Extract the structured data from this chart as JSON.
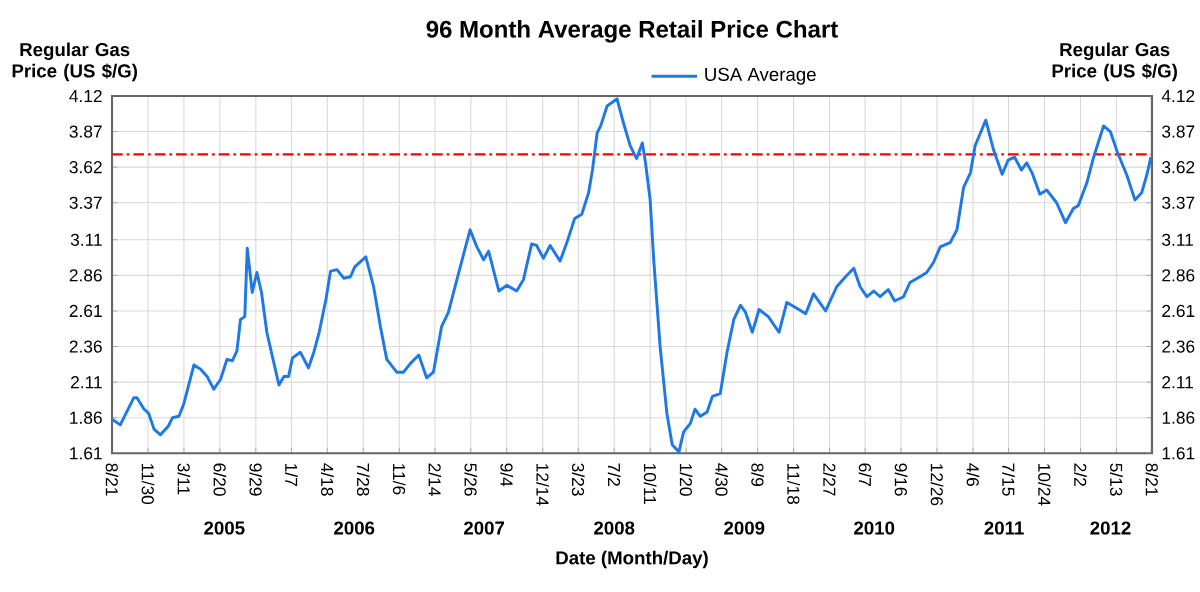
{
  "chart_data": {
    "type": "line",
    "title": "96 Month Average Retail Price Chart",
    "xlabel": "Date (Month/Day)",
    "ylabel": "Regular Gas Price (US $/G)",
    "y2label": "Regular Gas Price (US $/G)",
    "x": [
      "2004-08-21",
      "2004-09-13",
      "2004-10-21",
      "2004-10-30",
      "2004-11-19",
      "2004-12-02",
      "2004-12-17",
      "2005-01-04",
      "2005-01-26",
      "2005-02-07",
      "2005-02-25",
      "2005-03-11",
      "2005-04-08",
      "2005-04-27",
      "2005-05-15",
      "2005-06-03",
      "2005-06-22",
      "2005-07-10",
      "2005-07-25",
      "2005-08-07",
      "2005-08-17",
      "2005-08-29",
      "2005-09-05",
      "2005-09-19",
      "2005-10-02",
      "2005-10-15",
      "2005-10-30",
      "2005-12-03",
      "2005-12-17",
      "2005-12-30",
      "2006-01-10",
      "2006-02-01",
      "2006-02-24",
      "2006-03-11",
      "2006-03-26",
      "2006-04-14",
      "2006-04-27",
      "2006-05-15",
      "2006-06-03",
      "2006-06-22",
      "2006-07-04",
      "2006-08-04",
      "2006-08-26",
      "2006-09-14",
      "2006-10-02",
      "2006-10-30",
      "2006-11-18",
      "2006-12-07",
      "2006-12-31",
      "2007-01-22",
      "2007-02-10",
      "2007-03-05",
      "2007-03-24",
      "2007-04-17",
      "2007-05-24",
      "2007-06-12",
      "2007-07-01",
      "2007-07-15",
      "2007-08-13",
      "2007-09-04",
      "2007-10-02",
      "2007-10-21",
      "2007-11-13",
      "2007-11-27",
      "2007-12-16",
      "2008-01-04",
      "2008-02-01",
      "2008-02-20",
      "2008-03-13",
      "2008-04-02",
      "2008-04-21",
      "2008-05-02",
      "2008-05-15",
      "2008-05-25",
      "2008-06-12",
      "2008-07-10",
      "2008-07-28",
      "2008-08-16",
      "2008-09-03",
      "2008-09-19",
      "2008-09-28",
      "2008-10-11",
      "2008-10-21",
      "2008-11-08",
      "2008-11-27",
      "2008-12-12",
      "2008-12-31",
      "2009-01-13",
      "2009-02-01",
      "2009-02-14",
      "2009-03-01",
      "2009-03-20",
      "2009-04-04",
      "2009-04-26",
      "2009-05-15",
      "2009-06-03",
      "2009-06-22",
      "2009-07-06",
      "2009-07-25",
      "2009-08-13",
      "2009-09-08",
      "2009-10-08",
      "2009-10-30",
      "2009-12-03",
      "2009-12-22",
      "2010-01-13",
      "2010-02-16",
      "2010-03-19",
      "2010-04-13",
      "2010-05-06",
      "2010-05-24",
      "2010-06-12",
      "2010-07-01",
      "2010-07-19",
      "2010-08-11",
      "2010-08-29",
      "2010-09-23",
      "2010-10-11",
      "2010-11-08",
      "2010-11-27",
      "2010-12-16",
      "2011-01-04",
      "2011-02-01",
      "2011-02-20",
      "2011-03-11",
      "2011-03-30",
      "2011-04-12",
      "2011-04-27",
      "2011-05-12",
      "2011-06-03",
      "2011-06-27",
      "2011-07-14",
      "2011-08-01",
      "2011-08-20",
      "2011-09-04",
      "2011-09-19",
      "2011-10-11",
      "2011-10-30",
      "2011-11-27",
      "2011-12-22",
      "2012-01-13",
      "2012-01-27",
      "2012-02-20",
      "2012-03-10",
      "2012-04-07",
      "2012-04-26",
      "2012-05-15",
      "2012-06-12",
      "2012-07-04",
      "2012-07-23",
      "2012-08-07",
      "2012-08-18"
    ],
    "series": [
      {
        "name": "USA Average",
        "color": "#1e78e6",
        "values": [
          1.85,
          1.81,
          2.0,
          2.0,
          1.92,
          1.89,
          1.78,
          1.74,
          1.8,
          1.86,
          1.87,
          1.96,
          2.23,
          2.2,
          2.15,
          2.06,
          2.13,
          2.27,
          2.26,
          2.33,
          2.55,
          2.57,
          3.05,
          2.74,
          2.88,
          2.74,
          2.46,
          2.09,
          2.15,
          2.15,
          2.28,
          2.32,
          2.21,
          2.32,
          2.46,
          2.69,
          2.89,
          2.9,
          2.84,
          2.85,
          2.92,
          2.99,
          2.78,
          2.5,
          2.27,
          2.18,
          2.18,
          2.24,
          2.3,
          2.14,
          2.18,
          2.5,
          2.6,
          2.83,
          3.18,
          3.06,
          2.97,
          3.03,
          2.75,
          2.79,
          2.75,
          2.83,
          3.08,
          3.07,
          2.98,
          3.07,
          2.96,
          3.09,
          3.26,
          3.29,
          3.44,
          3.6,
          3.86,
          3.91,
          4.05,
          4.1,
          3.93,
          3.77,
          3.68,
          3.79,
          3.65,
          3.39,
          2.97,
          2.36,
          1.89,
          1.67,
          1.62,
          1.76,
          1.82,
          1.92,
          1.87,
          1.9,
          2.01,
          2.03,
          2.32,
          2.55,
          2.65,
          2.6,
          2.46,
          2.62,
          2.57,
          2.46,
          2.67,
          2.62,
          2.59,
          2.73,
          2.61,
          2.78,
          2.85,
          2.91,
          2.78,
          2.71,
          2.75,
          2.71,
          2.76,
          2.68,
          2.71,
          2.81,
          2.85,
          2.88,
          2.95,
          3.06,
          3.09,
          3.18,
          3.48,
          3.58,
          3.77,
          3.86,
          3.95,
          3.74,
          3.57,
          3.67,
          3.69,
          3.6,
          3.65,
          3.58,
          3.43,
          3.46,
          3.37,
          3.23,
          3.33,
          3.35,
          3.51,
          3.69,
          3.91,
          3.87,
          3.73,
          3.56,
          3.39,
          3.44,
          3.57,
          3.69
        ]
      }
    ],
    "xlim": [
      "2004-08-21",
      "2012-08-21"
    ],
    "xticks": [
      {
        "value": "2004-08-21",
        "label": "8/21"
      },
      {
        "value": "2004-11-30",
        "label": "11/30"
      },
      {
        "value": "2005-03-11",
        "label": "3/11"
      },
      {
        "value": "2005-06-20",
        "label": "6/20"
      },
      {
        "value": "2005-09-29",
        "label": "9/29"
      },
      {
        "value": "2006-01-07",
        "label": "1/7"
      },
      {
        "value": "2006-04-18",
        "label": "4/18"
      },
      {
        "value": "2006-07-28",
        "label": "7/28"
      },
      {
        "value": "2006-11-06",
        "label": "11/6"
      },
      {
        "value": "2007-02-14",
        "label": "2/14"
      },
      {
        "value": "2007-05-26",
        "label": "5/26"
      },
      {
        "value": "2007-09-04",
        "label": "9/4"
      },
      {
        "value": "2007-12-14",
        "label": "12/14"
      },
      {
        "value": "2008-03-23",
        "label": "3/23"
      },
      {
        "value": "2008-07-02",
        "label": "7/2"
      },
      {
        "value": "2008-10-11",
        "label": "10/11"
      },
      {
        "value": "2009-01-20",
        "label": "1/20"
      },
      {
        "value": "2009-04-30",
        "label": "4/30"
      },
      {
        "value": "2009-08-09",
        "label": "8/9"
      },
      {
        "value": "2009-11-18",
        "label": "11/18"
      },
      {
        "value": "2010-02-27",
        "label": "2/27"
      },
      {
        "value": "2010-06-07",
        "label": "6/7"
      },
      {
        "value": "2010-09-16",
        "label": "9/16"
      },
      {
        "value": "2010-12-26",
        "label": "12/26"
      },
      {
        "value": "2011-04-06",
        "label": "4/6"
      },
      {
        "value": "2011-07-15",
        "label": "7/15"
      },
      {
        "value": "2011-10-24",
        "label": "10/24"
      },
      {
        "value": "2012-02-02",
        "label": "2/2"
      },
      {
        "value": "2012-05-13",
        "label": "5/13"
      },
      {
        "value": "2012-08-21",
        "label": "8/21"
      }
    ],
    "ylim": [
      1.61,
      4.12
    ],
    "yticks": [
      1.61,
      1.86,
      2.11,
      2.36,
      2.61,
      2.86,
      3.11,
      3.37,
      3.62,
      3.87,
      4.12
    ],
    "y2lim": [
      1.61,
      4.12
    ],
    "y2ticks": [
      1.61,
      1.86,
      2.11,
      2.36,
      2.61,
      2.86,
      3.11,
      3.37,
      3.62,
      3.87,
      4.12
    ],
    "ref_lines": [
      {
        "axis": "y",
        "value": 3.71,
        "color": "#ff0000",
        "line_style": "dashdot"
      }
    ],
    "annotations": [
      "2005",
      "2006",
      "2007",
      "2008",
      "2009",
      "2010",
      "2011",
      "2012"
    ],
    "grid": true,
    "legend": "top"
  }
}
